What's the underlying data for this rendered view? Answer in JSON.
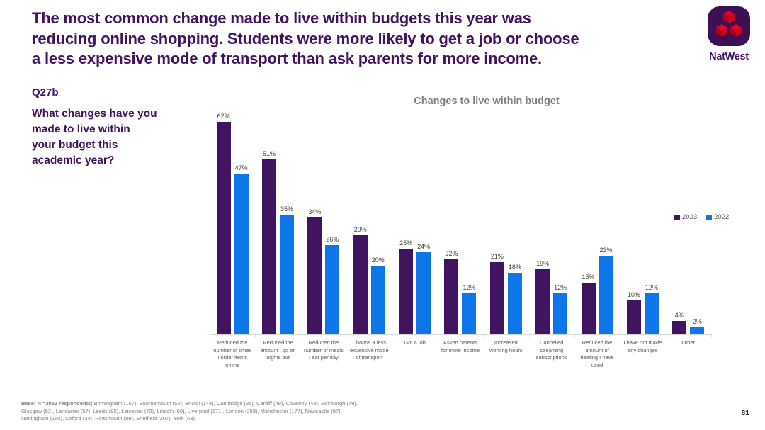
{
  "header": {
    "title_lines": [
      "The most common change made to live within budgets this year was",
      "reducing online shopping. Students were more likely to get a job or choose",
      "a less expensive mode of transport than ask parents for more income."
    ],
    "logo_text": "NatWest"
  },
  "question": {
    "code": "Q27b",
    "text_lines": [
      "What changes have you",
      "made to live within",
      "your budget this",
      "academic year?"
    ]
  },
  "chart_data": {
    "type": "bar",
    "title": "Changes to live within budget",
    "categories": [
      "Reduced the number of times I order items online",
      "Reduced the amount I go on nights out",
      "Reduced the number of meals I eat per day",
      "Choose a less expensive mode of transport",
      "Got a job",
      "Asked parents for more income",
      "Increased working hours",
      "Cancelled streaming subscriptions",
      "Reduced the amount of heating I have used",
      "I have not made any changes",
      "Other"
    ],
    "series": [
      {
        "name": "2023",
        "color": "#40145E",
        "values": [
          62,
          51,
          34,
          29,
          25,
          22,
          21,
          19,
          15,
          10,
          4
        ]
      },
      {
        "name": "2022",
        "color": "#0D76E8",
        "values": [
          47,
          35,
          26,
          20,
          24,
          12,
          18,
          12,
          23,
          12,
          2
        ]
      }
    ],
    "value_suffix": "%",
    "xlabel": "",
    "ylabel": "",
    "ylim": [
      0,
      65
    ],
    "grid": false,
    "legend_position": "right",
    "value_labels": true
  },
  "footer": {
    "base_note": {
      "bold": "Base: N =3052 respondents;",
      "line1_rest": " Birmingham (157),  Bournemouth (52), Bristol (148), Cambridge (35), Cardiff (49), Coventry (48),  Edinburgh (79),",
      "line2": "Glasgow (82), Lancaster (57), Leeds (85), Leicester (72), Lincoln (60), Liverpool (171), London (258), Manchester (177), Newcastle (97),",
      "line3": "Nottingham (160), Oxford (34), Portsmouth (89), Sheffield (207), York (63)."
    },
    "page_number": "81"
  },
  "colors": {
    "brand_purple": "#42145F",
    "bar_2023": "#40145E",
    "bar_2022": "#0D76E8",
    "chart_title_gray": "#7F7F7F",
    "axis_gray": "#D9D9D9",
    "label_gray": "#595959"
  }
}
